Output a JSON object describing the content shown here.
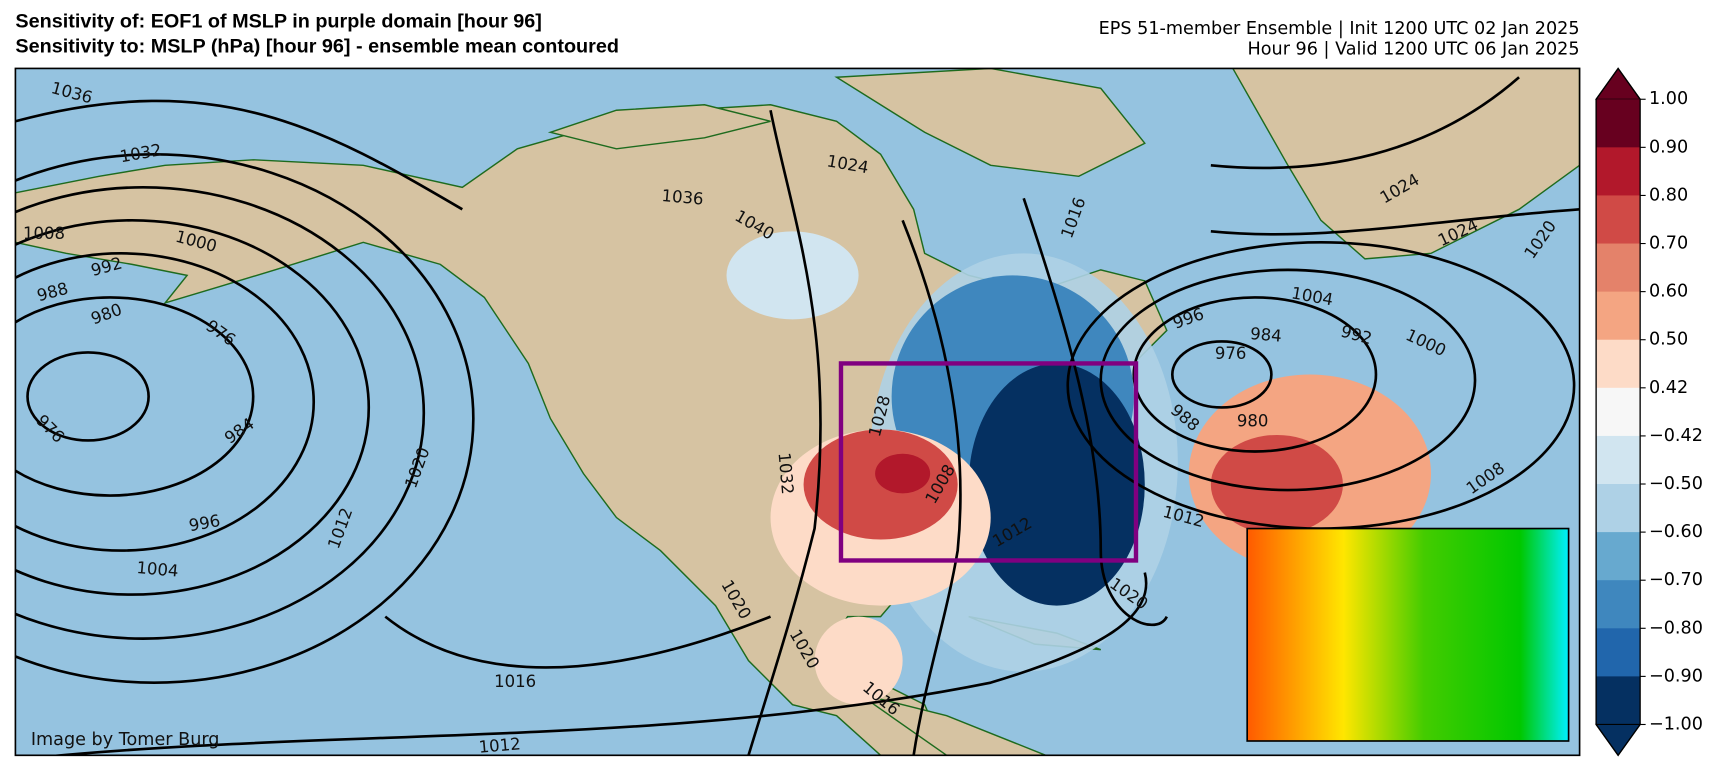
{
  "header": {
    "title_line1": "Sensitivity of: EOF1 of MSLP in purple domain [hour 96]",
    "title_line2": "Sensitivity to: MSLP (hPa) [hour 96] - ensemble mean contoured",
    "info_line1": "EPS 51-member Ensemble | Init 1200 UTC 02 Jan 2025",
    "info_line2": "Hour 96 | Valid 1200 UTC 06 Jan 2025"
  },
  "map": {
    "credit": "Image by Tomer Burg",
    "contour_labels": [
      "1036",
      "1032",
      "1008",
      "1000",
      "992",
      "988",
      "980",
      "976",
      "976",
      "984",
      "996",
      "1004",
      "1012",
      "1020",
      "1016",
      "1012",
      "1036",
      "1040",
      "1024",
      "1016",
      "1004",
      "996",
      "984",
      "976",
      "992",
      "1000",
      "980",
      "988",
      "1012",
      "1008",
      "1024",
      "1020",
      "1024",
      "1028",
      "1032",
      "1008",
      "1012",
      "1020",
      "1020",
      "1020",
      "1016"
    ]
  },
  "colorbar": {
    "colors": [
      "#67001f",
      "#67001f",
      "#b2182b",
      "#d04a46",
      "#e4826a",
      "#f4a582",
      "#fddbc7",
      "#f7f7f7",
      "#d1e5f0",
      "#aed1e6",
      "#67a9cf",
      "#3f87be",
      "#2166ac",
      "#053061",
      "#053061"
    ],
    "ticks": [
      {
        "value": 1.0,
        "label": "1.00"
      },
      {
        "value": 0.9,
        "label": "0.90"
      },
      {
        "value": 0.8,
        "label": "0.80"
      },
      {
        "value": 0.7,
        "label": "0.70"
      },
      {
        "value": 0.6,
        "label": "0.60"
      },
      {
        "value": 0.5,
        "label": "0.50"
      },
      {
        "value": 0.42,
        "label": "0.42"
      },
      {
        "value": -0.42,
        "label": "−0.42"
      },
      {
        "value": -0.5,
        "label": "−0.50"
      },
      {
        "value": -0.6,
        "label": "−0.60"
      },
      {
        "value": -0.7,
        "label": "−0.70"
      },
      {
        "value": -0.8,
        "label": "−0.80"
      },
      {
        "value": -0.9,
        "label": "−0.90"
      },
      {
        "value": -1.0,
        "label": "−1.00"
      }
    ]
  }
}
